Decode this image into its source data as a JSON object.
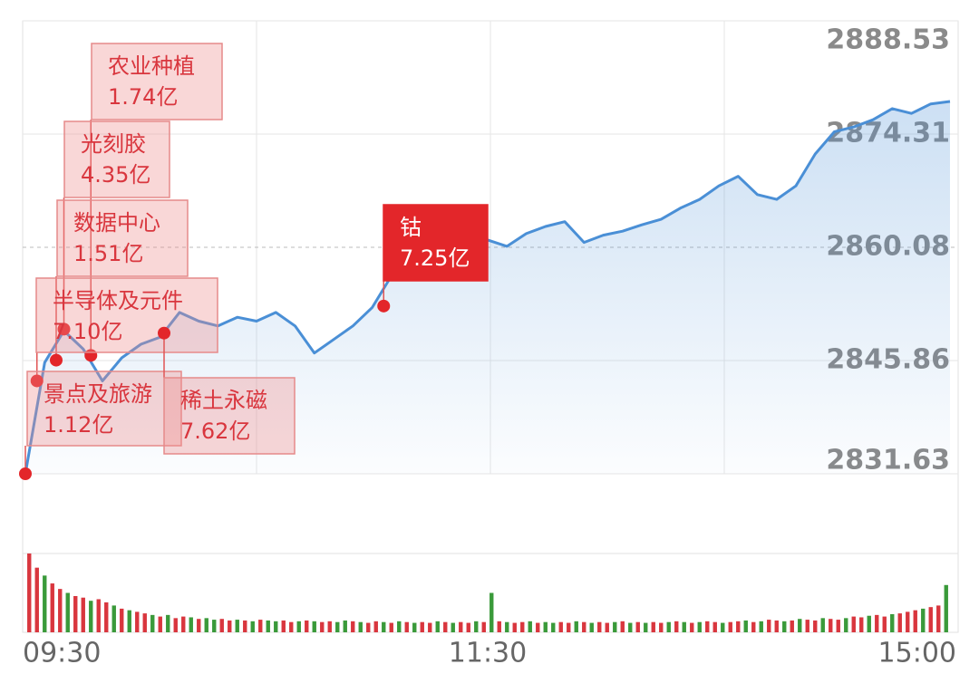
{
  "chart_data": {
    "type": "line",
    "x": [
      "09:30",
      "09:35",
      "09:40",
      "09:45",
      "09:50",
      "09:55",
      "10:00",
      "10:05",
      "10:10",
      "10:15",
      "10:20",
      "10:25",
      "10:30",
      "10:35",
      "10:40",
      "10:45",
      "10:50",
      "10:55",
      "11:00",
      "11:05",
      "11:10",
      "11:15",
      "11:20",
      "11:25",
      "11:30",
      "13:05",
      "13:10",
      "13:15",
      "13:20",
      "13:25",
      "13:30",
      "13:35",
      "13:40",
      "13:45",
      "13:50",
      "13:55",
      "14:00",
      "14:05",
      "14:10",
      "14:15",
      "14:20",
      "14:25",
      "14:30",
      "14:35",
      "14:40",
      "14:45",
      "14:50",
      "14:55",
      "15:00"
    ],
    "values": [
      2831.63,
      2845.6,
      2849.6,
      2847.3,
      2843.3,
      2846.2,
      2847.9,
      2848.8,
      2851.9,
      2850.8,
      2850.2,
      2851.3,
      2850.8,
      2851.9,
      2850.2,
      2846.8,
      2848.5,
      2850.2,
      2852.5,
      2856.5,
      2857.6,
      2860.4,
      2862.1,
      2862.7,
      2861.0,
      2860.2,
      2861.8,
      2862.7,
      2863.3,
      2860.7,
      2861.6,
      2862.1,
      2862.9,
      2863.6,
      2865.0,
      2866.1,
      2867.8,
      2869.0,
      2866.7,
      2866.1,
      2867.8,
      2871.8,
      2874.6,
      2875.2,
      2876.1,
      2877.5,
      2876.9,
      2878.1,
      2878.4
    ],
    "color": "#4a8fd6",
    "ylim": [
      2831.63,
      2888.53
    ],
    "yticks": [
      2831.63,
      2845.86,
      2860.08,
      2874.31,
      2888.53
    ],
    "reference": 2860.08,
    "xlabels": [
      "09:30",
      "11:30",
      "15:00"
    ],
    "annotations": [
      {
        "label": "农业种植",
        "amount": "1.74亿",
        "time": "09:47",
        "value": 2846.5
      },
      {
        "label": "光刻胶",
        "amount": "4.35亿",
        "time": "09:40",
        "value": 2849.8
      },
      {
        "label": "数据中心",
        "amount": "1.51亿",
        "time": "09:38",
        "value": 2845.9
      },
      {
        "label": "半导体及元件",
        "amount": "7.10亿",
        "time": "09:33",
        "value": 2843.3
      },
      {
        "label": "景点及旅游",
        "amount": "1.12亿",
        "time": "09:30",
        "value": 2831.63
      },
      {
        "label": "稀土永磁",
        "amount": "7.62亿",
        "time": "10:06",
        "value": 2849.3
      },
      {
        "label": "钴",
        "amount": "7.25亿",
        "time": "11:03",
        "value": 2852.7
      }
    ],
    "volume": {
      "ylim": [
        0,
        100
      ],
      "up_color": "#d9363e",
      "down_color": "#3a9a3a",
      "values": [
        100,
        82,
        72,
        62,
        55,
        50,
        46,
        44,
        40,
        42,
        38,
        34,
        30,
        28,
        26,
        24,
        22,
        20,
        22,
        18,
        20,
        19,
        17,
        18,
        16,
        17,
        15,
        16,
        15,
        14,
        16,
        15,
        14,
        15,
        13,
        14,
        15,
        14,
        13,
        14,
        13,
        15,
        14,
        13,
        12,
        14,
        13,
        12,
        14,
        13,
        12,
        13,
        12,
        14,
        13,
        12,
        13,
        12,
        14,
        13,
        50,
        14,
        13,
        12,
        13,
        14,
        12,
        13,
        12,
        13,
        12,
        14,
        13,
        12,
        13,
        12,
        13,
        14,
        12,
        13,
        12,
        13,
        12,
        13,
        14,
        13,
        12,
        13,
        14,
        13,
        12,
        13,
        14,
        15,
        13,
        14,
        16,
        15,
        14,
        15,
        17,
        16,
        15,
        18,
        17,
        16,
        18,
        20,
        19,
        21,
        22,
        20,
        23,
        24,
        26,
        28,
        30,
        32,
        34,
        60
      ],
      "up": [
        true,
        true,
        false,
        true,
        true,
        false,
        true,
        true,
        false,
        true,
        true,
        false,
        true,
        false,
        true,
        true,
        false,
        true,
        false,
        true,
        true,
        false,
        true,
        false,
        false,
        true,
        true,
        false,
        true,
        false,
        true,
        false,
        false,
        true,
        true,
        false,
        true,
        false,
        true,
        true,
        false,
        false,
        true,
        false,
        true,
        true,
        false,
        true,
        false,
        true,
        false,
        true,
        true,
        false,
        true,
        false,
        true,
        true,
        false,
        true,
        false,
        true,
        false,
        true,
        true,
        false,
        true,
        false,
        false,
        true,
        true,
        false,
        true,
        false,
        true,
        true,
        false,
        true,
        false,
        true,
        false,
        true,
        true,
        false,
        true,
        false,
        true,
        false,
        true,
        true,
        false,
        true,
        true,
        false,
        true,
        false,
        true,
        true,
        false,
        true,
        false,
        true,
        true,
        false,
        true,
        true,
        false,
        true,
        true,
        false,
        true,
        true,
        false,
        true,
        true,
        true,
        false,
        true,
        true,
        false
      ]
    }
  }
}
